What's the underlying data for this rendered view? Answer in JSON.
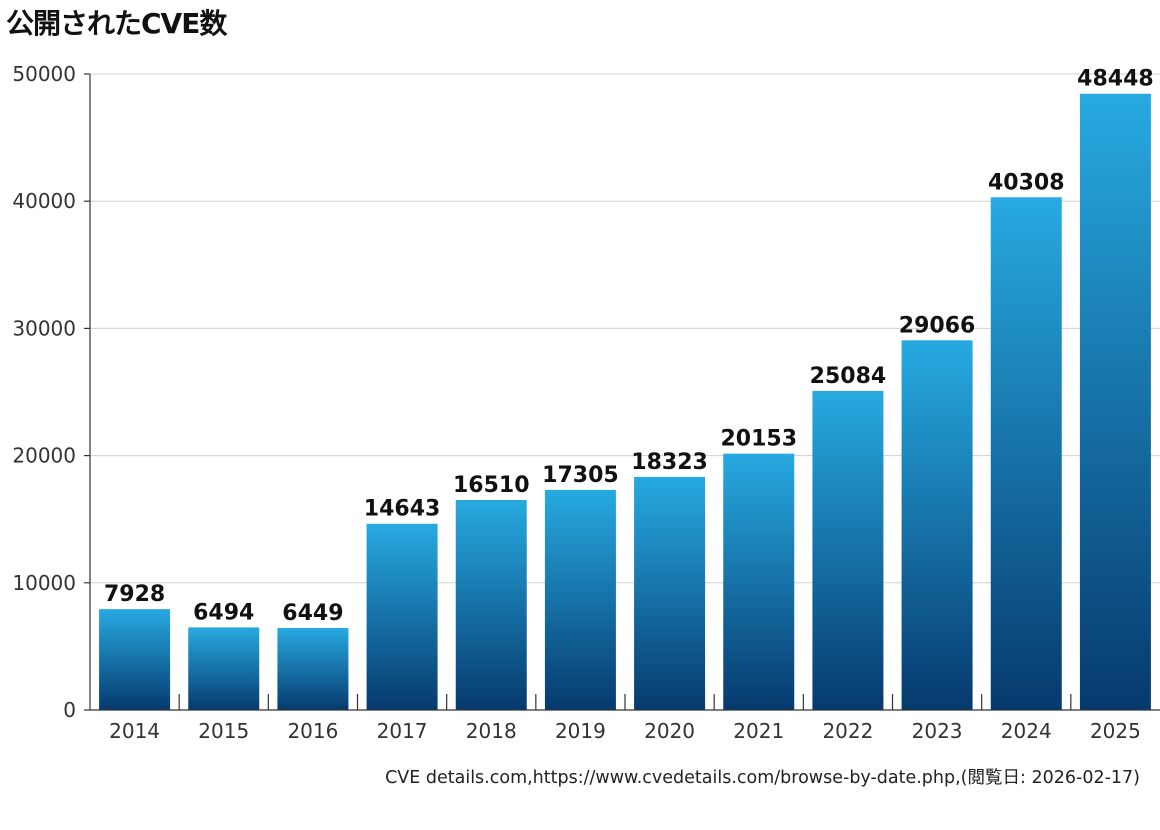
{
  "chart_data": {
    "type": "bar",
    "title": "公開されたCVE数",
    "categories": [
      "2014",
      "2015",
      "2016",
      "2017",
      "2018",
      "2019",
      "2020",
      "2021",
      "2022",
      "2023",
      "2024",
      "2025"
    ],
    "values": [
      7928,
      6494,
      6449,
      14643,
      16510,
      17305,
      18323,
      20153,
      25084,
      29066,
      40308,
      48448
    ],
    "xlabel": "",
    "ylabel": "",
    "ylim": [
      0,
      50000
    ],
    "yticks": [
      0,
      10000,
      20000,
      30000,
      40000,
      50000
    ],
    "grid": true,
    "legend": "none",
    "source": "CVE details.com,https://www.cvedetails.com/browse-by-date.php,(閲覧日: 2026-02-17)"
  },
  "colors": {
    "bar_top": "#27aae1",
    "bar_bottom": "#063a6e",
    "gridline": "#d0d0d0",
    "axis": "#333333"
  }
}
